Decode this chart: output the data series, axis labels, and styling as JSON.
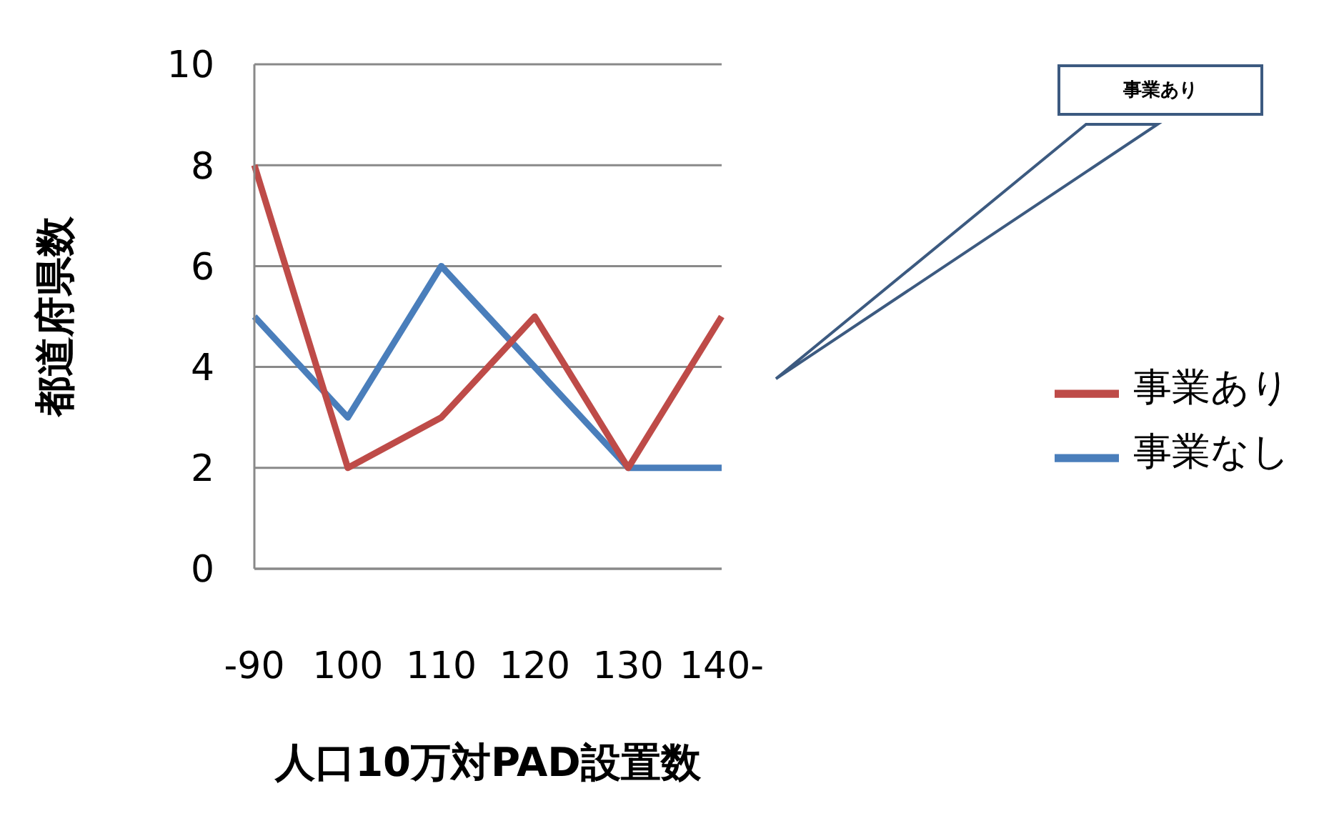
{
  "chart_data": {
    "type": "line",
    "xlabel": "人口10万対PAD設置数",
    "ylabel": "都道府県数",
    "categories": [
      "-90",
      "100",
      "110",
      "120",
      "130",
      "140-"
    ],
    "series": [
      {
        "name": "事業なし",
        "color": "#4a7ebb",
        "values": [
          5,
          3,
          6,
          4,
          2,
          2
        ]
      },
      {
        "name": "事業あり",
        "color": "#be4b48",
        "values": [
          8,
          2,
          3,
          5,
          2,
          5
        ]
      }
    ],
    "ylim": [
      0,
      10
    ],
    "yticks": [
      0,
      2,
      4,
      6,
      8,
      10
    ],
    "grid": "y",
    "legend": "right",
    "marker": "none",
    "line_style": "solid",
    "annotations": [
      "事業あり"
    ]
  }
}
